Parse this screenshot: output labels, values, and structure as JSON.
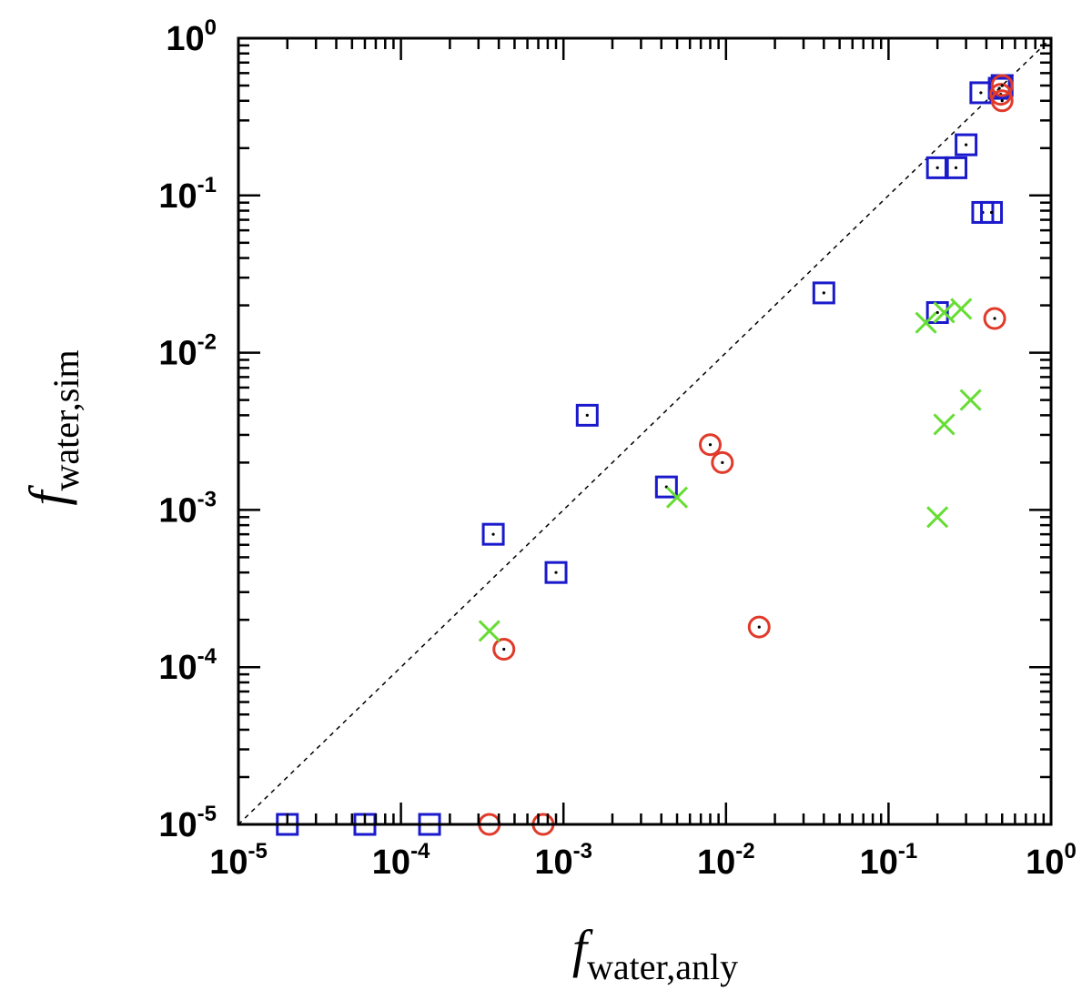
{
  "chart_data": {
    "type": "scatter",
    "xscale": "log",
    "yscale": "log",
    "xlim": [
      1e-05,
      1
    ],
    "ylim": [
      1e-05,
      1
    ],
    "title": "",
    "xlabel": {
      "symbol": "f",
      "subscript": "water,anly"
    },
    "ylabel": {
      "symbol": "f",
      "subscript": "water,sim"
    },
    "x_ticks": [
      {
        "base": "10",
        "exp": "-5"
      },
      {
        "base": "10",
        "exp": "-4"
      },
      {
        "base": "10",
        "exp": "-3"
      },
      {
        "base": "10",
        "exp": "-2"
      },
      {
        "base": "10",
        "exp": "-1"
      },
      {
        "base": "10",
        "exp": "0"
      }
    ],
    "y_ticks": [
      {
        "base": "10",
        "exp": "-5"
      },
      {
        "base": "10",
        "exp": "-4"
      },
      {
        "base": "10",
        "exp": "-3"
      },
      {
        "base": "10",
        "exp": "-2"
      },
      {
        "base": "10",
        "exp": "-1"
      },
      {
        "base": "10",
        "exp": "0"
      }
    ],
    "reference_line": {
      "type": "y=x",
      "style": "dashed",
      "color": "#000000"
    },
    "series": [
      {
        "name": "squares",
        "marker": "square-dot",
        "color": "#1a1acc",
        "points": [
          [
            2e-05,
            1e-05
          ],
          [
            6e-05,
            1e-05
          ],
          [
            0.00015,
            1e-05
          ],
          [
            0.00037,
            0.0007
          ],
          [
            0.0009,
            0.0004
          ],
          [
            0.0014,
            0.004
          ],
          [
            0.0043,
            0.0014
          ],
          [
            0.04,
            0.024
          ],
          [
            0.2,
            0.018
          ],
          [
            0.2,
            0.15
          ],
          [
            0.26,
            0.15
          ],
          [
            0.3,
            0.21
          ],
          [
            0.38,
            0.078
          ],
          [
            0.43,
            0.078
          ],
          [
            0.37,
            0.45
          ],
          [
            0.48,
            0.48
          ],
          [
            0.5,
            0.5
          ]
        ]
      },
      {
        "name": "circles",
        "marker": "circle-dot",
        "color": "#e03a2a",
        "points": [
          [
            0.00035,
            1e-05
          ],
          [
            0.00075,
            1e-05
          ],
          [
            0.00043,
            0.00013
          ],
          [
            0.008,
            0.0026
          ],
          [
            0.0095,
            0.002
          ],
          [
            0.016,
            0.00018
          ],
          [
            0.45,
            0.0165
          ],
          [
            0.49,
            0.44
          ],
          [
            0.5,
            0.5
          ],
          [
            0.5,
            0.4
          ]
        ]
      },
      {
        "name": "crosses",
        "marker": "x",
        "color": "#66dd33",
        "points": [
          [
            0.00035,
            0.00017
          ],
          [
            0.005,
            0.0012
          ],
          [
            0.2,
            0.0009
          ],
          [
            0.22,
            0.0035
          ],
          [
            0.32,
            0.005
          ],
          [
            0.17,
            0.0155
          ],
          [
            0.22,
            0.018
          ],
          [
            0.28,
            0.019
          ]
        ]
      }
    ]
  }
}
